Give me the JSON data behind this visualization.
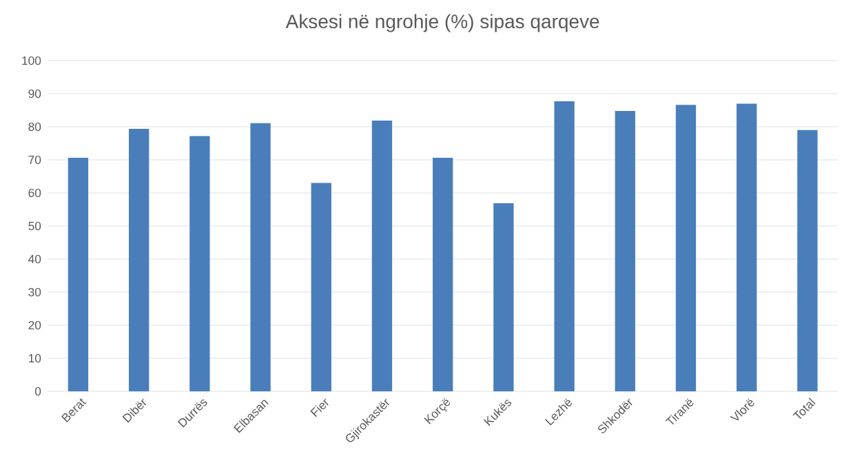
{
  "chart_data": {
    "type": "bar",
    "title": "Aksesi në ngrohje (%) sipas qarqeve",
    "categories": [
      "Berat",
      "Dibër",
      "Durrës",
      "Elbasan",
      "Fier",
      "Gjirokastër",
      "Korçë",
      "Kukës",
      "Lezhë",
      "Shkodër",
      "Tiranë",
      "Vlorë",
      "Total"
    ],
    "values": [
      70.6,
      79.4,
      77.2,
      81.1,
      63,
      81.9,
      70.6,
      56.9,
      87.7,
      84.8,
      86.6,
      87,
      79
    ],
    "color": "#4a7ebb",
    "ylim": [
      0,
      100
    ],
    "yticks": [
      0,
      10,
      20,
      30,
      40,
      50,
      60,
      70,
      80,
      90,
      100
    ],
    "grid": "y"
  }
}
